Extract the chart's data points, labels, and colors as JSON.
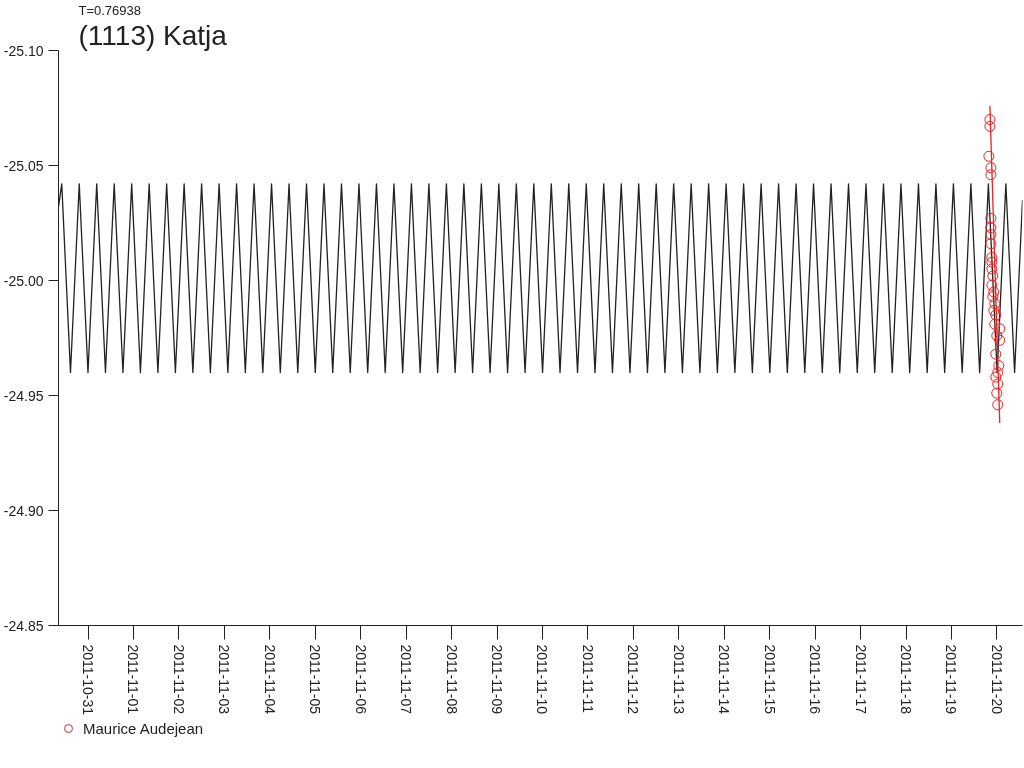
{
  "chart_data": {
    "type": "line",
    "title": "(1113) Katja",
    "subtitle": "T=0.76938",
    "xlim": [
      "2011-10-30T08:24",
      "2011-11-20T13:30"
    ],
    "xticks": [
      "2011-10-31",
      "2011-11-01",
      "2011-11-02",
      "2011-11-03",
      "2011-11-04",
      "2011-11-05",
      "2011-11-06",
      "2011-11-07",
      "2011-11-08",
      "2011-11-09",
      "2011-11-10",
      "2011-11-11",
      "2011-11-12",
      "2011-11-13",
      "2011-11-14",
      "2011-11-15",
      "2011-11-16",
      "2011-11-17",
      "2011-11-18",
      "2011-11-19",
      "2011-11-20"
    ],
    "ylim": [
      -24.85,
      -25.1
    ],
    "yticks": [
      {
        "value": -25.1,
        "label": "-25.10"
      },
      {
        "value": -25.05,
        "label": "-25.05"
      },
      {
        "value": -25.0,
        "label": "-25.00"
      },
      {
        "value": -24.95,
        "label": "-24.95"
      },
      {
        "value": -24.9,
        "label": "-24.90"
      },
      {
        "value": -24.85,
        "label": "-24.85"
      }
    ],
    "grid": false,
    "legend": "bottom left",
    "series": [
      {
        "type": "line",
        "color": "#222222",
        "marker": "none",
        "x": [
          "2011-10-30T08:24",
          "2011-10-30T10:07",
          "2011-10-30T14:44",
          "2011-10-30T19:21",
          "2011-10-30T23:58",
          "2011-10-31T04:35",
          "2011-10-31T09:12",
          "2011-10-31T13:49",
          "2011-10-31T18:26",
          "2011-10-31T23:03",
          "2011-11-01T03:40",
          "2011-11-01T08:17",
          "2011-11-01T12:54",
          "2011-11-01T17:31",
          "2011-11-01T22:08",
          "2011-11-02T02:45",
          "2011-11-02T07:22",
          "2011-11-02T11:59",
          "2011-11-02T16:36",
          "2011-11-02T21:13",
          "2011-11-03T01:50",
          "2011-11-03T06:27",
          "2011-11-03T11:04",
          "2011-11-03T15:41",
          "2011-11-03T20:18",
          "2011-11-04T00:55",
          "2011-11-04T05:32",
          "2011-11-04T10:09",
          "2011-11-04T14:46",
          "2011-11-04T19:23",
          "2011-11-05T00:00",
          "2011-11-05T04:37",
          "2011-11-05T09:14",
          "2011-11-05T13:51",
          "2011-11-05T18:28",
          "2011-11-05T23:05",
          "2011-11-06T03:42",
          "2011-11-06T08:19",
          "2011-11-06T12:56",
          "2011-11-06T17:33",
          "2011-11-06T22:10",
          "2011-11-07T02:47",
          "2011-11-07T07:24",
          "2011-11-07T12:01",
          "2011-11-07T16:38",
          "2011-11-07T21:15",
          "2011-11-08T01:52",
          "2011-11-08T06:29",
          "2011-11-08T11:06",
          "2011-11-08T15:43",
          "2011-11-08T20:20",
          "2011-11-09T00:57",
          "2011-11-09T05:34",
          "2011-11-09T10:11",
          "2011-11-09T14:48",
          "2011-11-09T19:25",
          "2011-11-10T00:02",
          "2011-11-10T04:39",
          "2011-11-10T09:16",
          "2011-11-10T13:53",
          "2011-11-10T18:30",
          "2011-11-10T23:07",
          "2011-11-11T03:44",
          "2011-11-11T08:21",
          "2011-11-11T12:58",
          "2011-11-11T17:35",
          "2011-11-11T22:12",
          "2011-11-12T02:49",
          "2011-11-12T07:26",
          "2011-11-12T12:03",
          "2011-11-12T16:40",
          "2011-11-12T21:17",
          "2011-11-13T01:54",
          "2011-11-13T06:31",
          "2011-11-13T11:08",
          "2011-11-13T15:45",
          "2011-11-13T20:22",
          "2011-11-14T00:59",
          "2011-11-14T05:36",
          "2011-11-14T10:13",
          "2011-11-14T14:50",
          "2011-11-14T19:27",
          "2011-11-15T00:04",
          "2011-11-15T04:41",
          "2011-11-15T09:18",
          "2011-11-15T13:55",
          "2011-11-15T18:32",
          "2011-11-15T23:09",
          "2011-11-16T03:46",
          "2011-11-16T08:23",
          "2011-11-16T13:00",
          "2011-11-16T17:37",
          "2011-11-16T22:14",
          "2011-11-17T02:51",
          "2011-11-17T07:28",
          "2011-11-17T12:05",
          "2011-11-17T16:42",
          "2011-11-17T21:19",
          "2011-11-18T01:56",
          "2011-11-18T06:33",
          "2011-11-18T11:10",
          "2011-11-18T15:47",
          "2011-11-18T20:24",
          "2011-11-19T01:01",
          "2011-11-19T05:38",
          "2011-11-19T10:15",
          "2011-11-19T14:52",
          "2011-11-19T19:29",
          "2011-11-20T00:06",
          "2011-11-20T04:43",
          "2011-11-20T09:20",
          "2011-11-20T13:30"
        ],
        "values": [
          -25.032,
          -25.042,
          -24.96,
          -25.042,
          -24.96,
          -25.042,
          -24.96,
          -25.042,
          -24.96,
          -25.042,
          -24.96,
          -25.042,
          -24.96,
          -25.042,
          -24.96,
          -25.042,
          -24.96,
          -25.042,
          -24.96,
          -25.042,
          -24.96,
          -25.042,
          -24.96,
          -25.042,
          -24.96,
          -25.042,
          -24.96,
          -25.042,
          -24.96,
          -25.042,
          -24.96,
          -25.042,
          -24.96,
          -25.042,
          -24.96,
          -25.042,
          -24.96,
          -25.042,
          -24.96,
          -25.042,
          -24.96,
          -25.042,
          -24.96,
          -25.042,
          -24.96,
          -25.042,
          -24.96,
          -25.042,
          -24.96,
          -25.042,
          -24.96,
          -25.042,
          -24.96,
          -25.042,
          -24.96,
          -25.042,
          -24.96,
          -25.042,
          -24.96,
          -25.042,
          -24.96,
          -25.042,
          -24.96,
          -25.042,
          -24.96,
          -25.042,
          -24.96,
          -25.042,
          -24.96,
          -25.042,
          -24.96,
          -25.042,
          -24.96,
          -25.042,
          -24.96,
          -25.042,
          -24.96,
          -25.042,
          -24.96,
          -25.042,
          -24.96,
          -25.042,
          -24.96,
          -25.042,
          -24.96,
          -25.042,
          -24.96,
          -25.042,
          -24.96,
          -25.042,
          -24.96,
          -25.042,
          -24.96,
          -25.042,
          -24.96,
          -25.042,
          -24.96,
          -25.042,
          -24.96,
          -25.042,
          -24.96,
          -25.042,
          -24.96,
          -25.042,
          -24.96,
          -25.042,
          -24.96,
          -25.042,
          -24.96,
          -25.042,
          -24.96,
          -25.035
        ]
      },
      {
        "type": "line",
        "color": "#ee2222",
        "marker": "none",
        "x": [
          "2011-11-19T20:17",
          "2011-11-20T01:29"
        ],
        "values": [
          -25.076,
          -24.938
        ]
      },
      {
        "type": "scatter",
        "name": "Maurice Audejean",
        "color": "#ee2222",
        "marker": "circle",
        "x": [
          "2011-11-19T20:17",
          "2011-11-19T20:17",
          "2011-11-19T19:45",
          "2011-11-19T20:48",
          "2011-11-19T20:48",
          "2011-11-19T20:48",
          "2011-11-19T20:48",
          "2011-11-19T20:48",
          "2011-11-19T20:48",
          "2011-11-19T21:19",
          "2011-11-19T21:19",
          "2011-11-19T21:19",
          "2011-11-19T21:50",
          "2011-11-19T21:19",
          "2011-11-19T22:22",
          "2011-11-19T21:50",
          "2011-11-19T22:53",
          "2011-11-19T22:22",
          "2011-11-19T23:24",
          "2011-11-19T22:53",
          "2011-11-20T01:29",
          "2011-11-19T23:55",
          "2011-11-20T01:29",
          "2011-11-19T23:24",
          "2011-11-20T00:58",
          "2011-11-20T00:26",
          "2011-11-19T23:24",
          "2011-11-20T00:26",
          "2011-11-19T23:55",
          "2011-11-20T00:26"
        ],
        "values": [
          -25.07,
          -25.067,
          -25.054,
          -25.049,
          -25.046,
          -25.027,
          -25.023,
          -25.02,
          -25.016,
          -25.01,
          -25.008,
          -25.005,
          -25.002,
          -24.998,
          -24.995,
          -24.993,
          -24.99,
          -24.987,
          -24.985,
          -24.981,
          -24.979,
          -24.976,
          -24.974,
          -24.968,
          -24.963,
          -24.96,
          -24.958,
          -24.955,
          -24.951,
          -24.946
        ]
      }
    ]
  }
}
